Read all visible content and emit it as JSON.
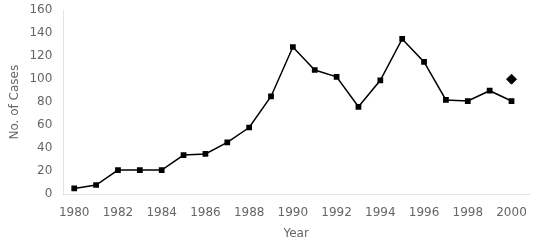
{
  "chart_data": {
    "type": "line",
    "xlabel": "Year",
    "ylabel": "No. of Cases",
    "x": [
      1980,
      1981,
      1982,
      1983,
      1984,
      1985,
      1986,
      1987,
      1988,
      1989,
      1990,
      1991,
      1992,
      1993,
      1994,
      1995,
      1996,
      1997,
      1998,
      1999,
      2000
    ],
    "series": [
      {
        "color": "#000000",
        "marker": "square",
        "values": [
          5,
          8,
          21,
          21,
          21,
          34,
          35,
          45,
          58,
          85,
          128,
          108,
          102,
          76,
          99,
          135,
          115,
          82,
          81,
          90,
          81
        ]
      },
      {
        "type": "scatter",
        "color": "#000000",
        "marker": "diamond",
        "x": [
          2000
        ],
        "values": [
          100
        ]
      }
    ],
    "xlim": [
      1979.5,
      2000.8
    ],
    "xticks": [
      1980,
      1982,
      1984,
      1986,
      1988,
      1990,
      1992,
      1994,
      1996,
      1998,
      2000
    ],
    "ylim": [
      0,
      160
    ],
    "yticks": [
      0,
      20,
      40,
      60,
      80,
      100,
      120,
      140,
      160
    ],
    "grid": false
  }
}
